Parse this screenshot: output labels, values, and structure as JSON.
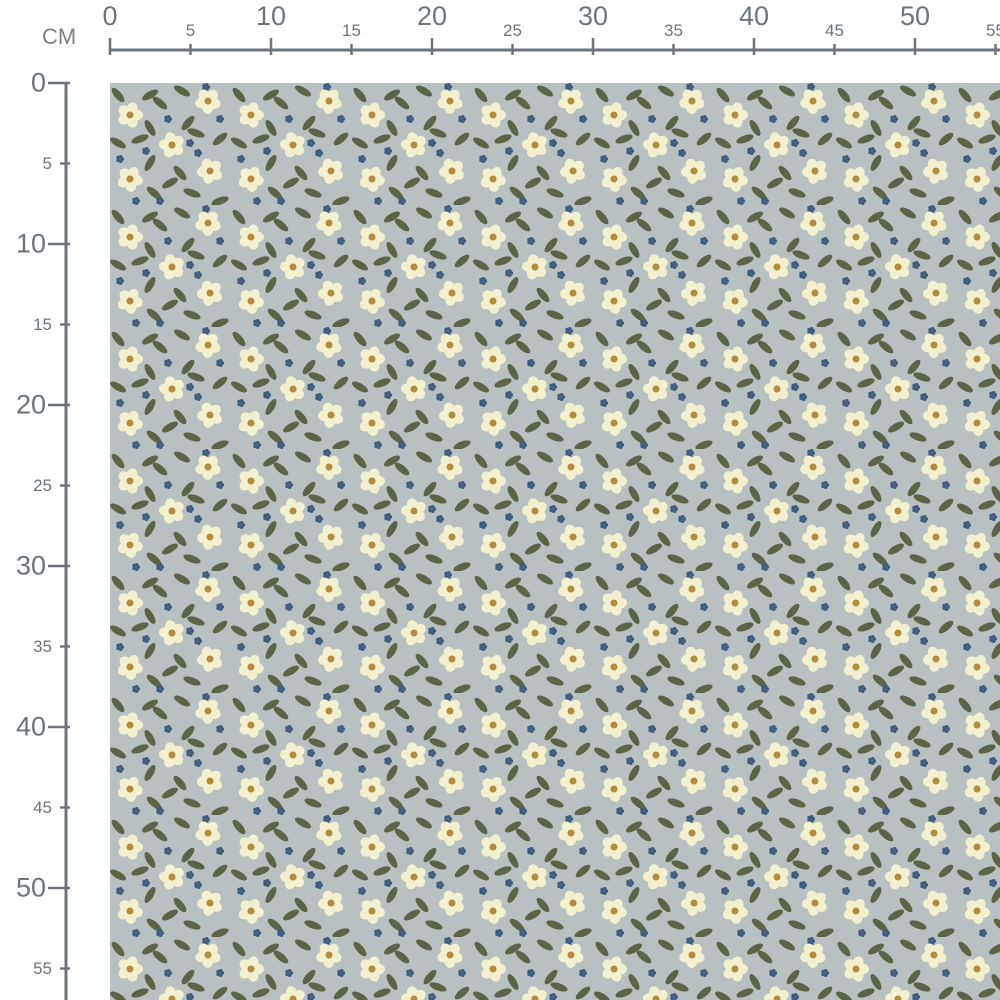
{
  "ruler": {
    "unit": "CM",
    "horizontal_labels": [
      "0",
      "5",
      "10",
      "15",
      "20",
      "25",
      "30",
      "35",
      "40",
      "45",
      "50",
      "55"
    ],
    "vertical_labels": [
      "0",
      "5",
      "10",
      "15",
      "20",
      "25",
      "30",
      "35",
      "40",
      "45",
      "50",
      "55"
    ],
    "color": "#6d757c"
  },
  "fabric": {
    "pattern": "small cream flowers with olive leaves and blue blossoms",
    "background_color": "#b9c0c2",
    "flower_color": "#f3f0d0",
    "flower_center_color": "#b48a3c",
    "leaf_color": "#5b6446",
    "blossom_color": "#3f5d7e"
  }
}
